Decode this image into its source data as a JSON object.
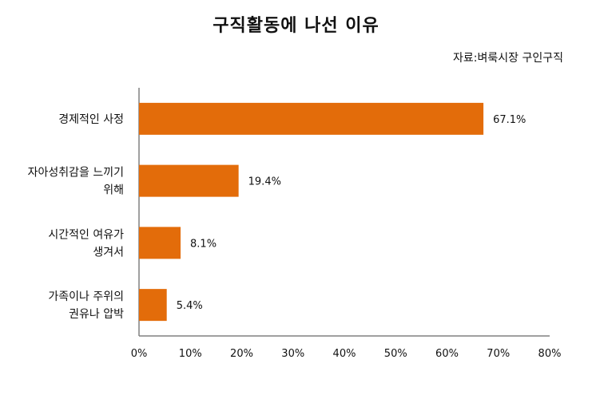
{
  "chart_data": {
    "type": "bar",
    "orientation": "horizontal",
    "title": "구직활동에 나선 이유",
    "source": "자료:벼룩시장 구인구직",
    "categories": [
      [
        "경제적인 사정"
      ],
      [
        "자아성취감을 느끼기",
        "위해"
      ],
      [
        "시간적인 여유가",
        "생겨서"
      ],
      [
        "가족이나 주위의",
        "권유나 압박"
      ]
    ],
    "values": [
      67.1,
      19.4,
      8.1,
      5.4
    ],
    "value_labels": [
      "67.1%",
      "19.4%",
      "8.1%",
      "5.4%"
    ],
    "xlim": [
      0,
      80
    ],
    "xticks": [
      0,
      10,
      20,
      30,
      40,
      50,
      60,
      70,
      80
    ],
    "xtick_labels": [
      "0%",
      "10%",
      "20%",
      "30%",
      "40%",
      "50%",
      "60%",
      "70%",
      "80%"
    ],
    "grid": false,
    "bar_color": "#E36C0A"
  }
}
